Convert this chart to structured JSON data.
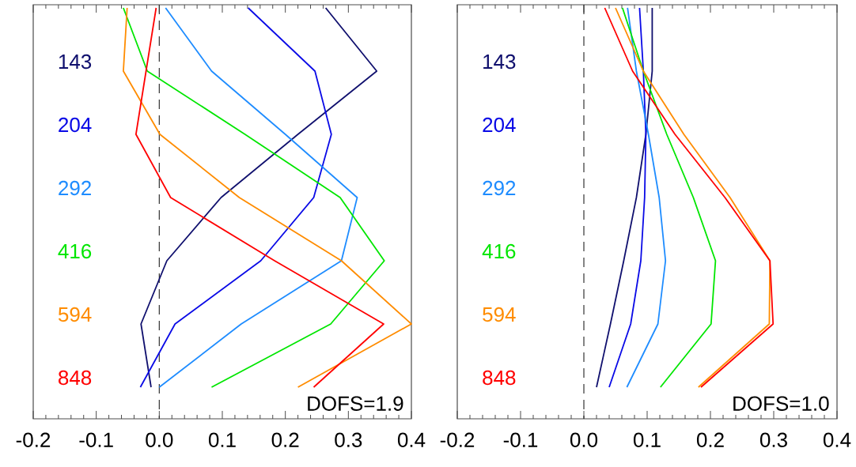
{
  "chart_data": [
    {
      "type": "line",
      "orientation": "horizontal",
      "categories": [
        null,
        null,
        null,
        null,
        null,
        null,
        null
      ],
      "xlim": [
        -0.2,
        0.4
      ],
      "xticks": [
        {
          "value": -0.2,
          "label": "-0.2"
        },
        {
          "value": -0.1,
          "label": "-0.1"
        },
        {
          "value": 0,
          "label": "0.0"
        },
        {
          "value": 0.1,
          "label": "0.1"
        },
        {
          "value": 0.2,
          "label": "0.2"
        },
        {
          "value": 0.3,
          "label": "0.3"
        },
        {
          "value": 0.4,
          "label": "0.4"
        }
      ],
      "series": [
        {
          "name": "143",
          "color": "#10106e",
          "values": [
            0.264,
            0.345,
            0.22,
            0.098,
            0.012,
            -0.029,
            -0.013
          ]
        },
        {
          "name": "204",
          "color": "#0a0ae6",
          "values": [
            0.141,
            0.247,
            0.273,
            0.245,
            0.161,
            0.025,
            -0.03
          ]
        },
        {
          "name": "292",
          "color": "#1e8cff",
          "values": [
            0.01,
            0.083,
            0.2,
            0.314,
            0.289,
            0.13,
            0.0
          ]
        },
        {
          "name": "416",
          "color": "#00e600",
          "values": [
            -0.057,
            -0.019,
            0.136,
            0.287,
            0.357,
            0.272,
            0.083
          ]
        },
        {
          "name": "594",
          "color": "#ff8c00",
          "values": [
            -0.051,
            -0.057,
            0.001,
            0.127,
            0.289,
            0.4,
            0.22
          ]
        },
        {
          "name": "848",
          "color": "#ff0000",
          "values": [
            -0.005,
            -0.021,
            -0.037,
            0.018,
            0.183,
            0.356,
            0.245
          ]
        }
      ],
      "ref_lines": [
        {
          "axis": "x",
          "value": 0,
          "line_style": "dashed",
          "color": "#333333"
        }
      ],
      "annotations": [
        "DOFS=1.9"
      ]
    },
    {
      "type": "line",
      "orientation": "horizontal",
      "categories": [
        null,
        null,
        null,
        null,
        null,
        null,
        null
      ],
      "xlim": [
        -0.2,
        0.4
      ],
      "xticks": [
        {
          "value": -0.2,
          "label": "-0.2"
        },
        {
          "value": -0.1,
          "label": "-0.1"
        },
        {
          "value": 0,
          "label": "0.0"
        },
        {
          "value": 0.1,
          "label": "0.1"
        },
        {
          "value": 0.2,
          "label": "0.2"
        },
        {
          "value": 0.3,
          "label": "0.3"
        },
        {
          "value": 0.4,
          "label": "0.4"
        }
      ],
      "series": [
        {
          "name": "143",
          "color": "#10106e",
          "values": [
            0.108,
            0.108,
            0.098,
            0.083,
            0.063,
            0.042,
            0.02
          ]
        },
        {
          "name": "204",
          "color": "#0a0ae6",
          "values": [
            0.088,
            0.094,
            0.098,
            0.096,
            0.09,
            0.074,
            0.04
          ]
        },
        {
          "name": "292",
          "color": "#1e8cff",
          "values": [
            0.069,
            0.083,
            0.102,
            0.119,
            0.129,
            0.117,
            0.068
          ]
        },
        {
          "name": "416",
          "color": "#00e600",
          "values": [
            0.061,
            0.094,
            0.131,
            0.173,
            0.208,
            0.201,
            0.121
          ]
        },
        {
          "name": "594",
          "color": "#ff8c00",
          "values": [
            0.05,
            0.094,
            0.158,
            0.231,
            0.294,
            0.293,
            0.181
          ]
        },
        {
          "name": "848",
          "color": "#ff0000",
          "values": [
            0.033,
            0.077,
            0.144,
            0.223,
            0.294,
            0.299,
            0.185
          ]
        }
      ],
      "ref_lines": [
        {
          "axis": "x",
          "value": 0,
          "line_style": "dashed",
          "color": "#333333"
        }
      ],
      "annotations": [
        "DOFS=1.0"
      ]
    }
  ]
}
